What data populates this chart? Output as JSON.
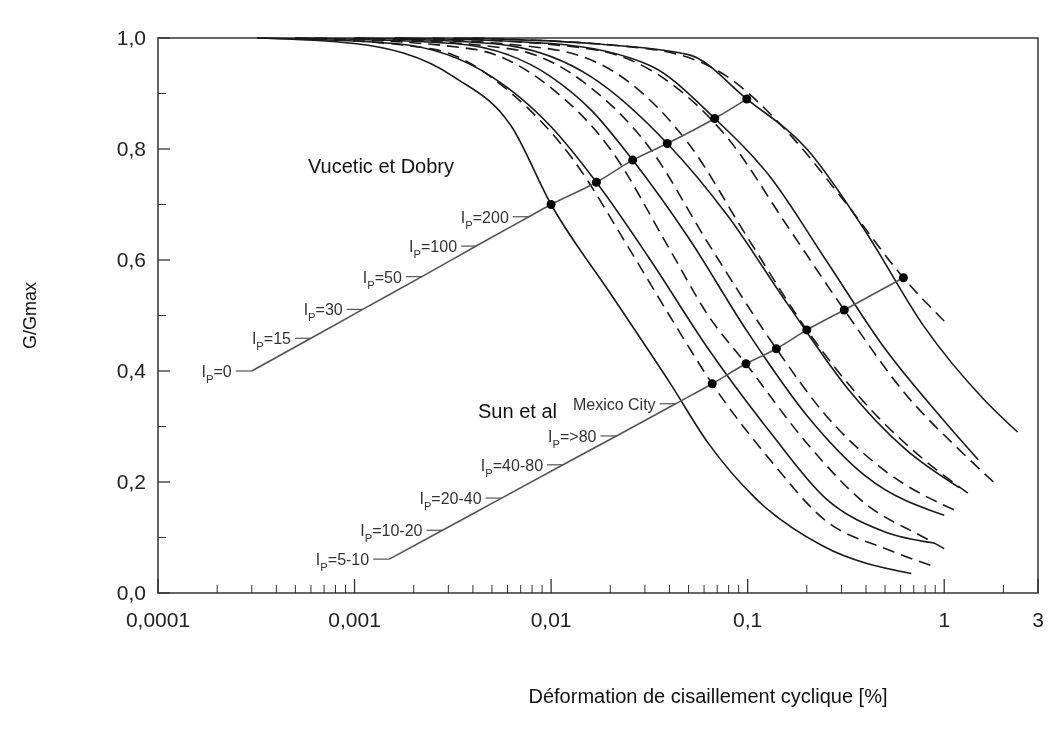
{
  "chart_data": {
    "type": "line",
    "xlabel": "Déformation de cisaillement cyclique [%]",
    "ylabel": "G/Gmax",
    "log": "x",
    "grid": false,
    "xlim": [
      0.0001,
      3
    ],
    "ylim": [
      0,
      1
    ],
    "xticks": [
      {
        "value": 0.0001,
        "label": "0,0001"
      },
      {
        "value": 0.001,
        "label": "0,001"
      },
      {
        "value": 0.01,
        "label": "0,01"
      },
      {
        "value": 0.1,
        "label": "0,1"
      },
      1,
      3
    ],
    "yticks": [
      {
        "value": 0,
        "label": "0,0"
      },
      {
        "value": 0.2,
        "label": "0,2"
      },
      {
        "value": 0.4,
        "label": "0,4"
      },
      {
        "value": 0.6,
        "label": "0,6"
      },
      {
        "value": 0.8,
        "label": "0,8"
      },
      {
        "value": 1,
        "label": "1,0"
      }
    ],
    "series": [
      {
        "color": "#1a1a1a",
        "line_style": "solid",
        "x": [
          0.00032,
          0.001,
          0.0032,
          0.0063,
          0.01,
          0.02,
          0.04,
          0.063,
          0.11,
          0.24,
          0.68
        ],
        "values": [
          1.0,
          0.99,
          0.93,
          0.84,
          0.7,
          0.54,
          0.38,
          0.27,
          0.17,
          0.085,
          0.035
        ]
      },
      {
        "color": "#1a1a1a",
        "line_style": "solid",
        "x": [
          0.00032,
          0.0016,
          0.005,
          0.01,
          0.017,
          0.032,
          0.063,
          0.13,
          0.25,
          0.5,
          0.89
        ],
        "values": [
          1.0,
          0.99,
          0.93,
          0.84,
          0.74,
          0.6,
          0.44,
          0.29,
          0.17,
          0.11,
          0.09
        ]
      },
      {
        "color": "#1a1a1a",
        "line_style": "solid",
        "x": [
          0.0005,
          0.0032,
          0.01,
          0.016,
          0.026,
          0.05,
          0.1,
          0.2,
          0.4,
          1
        ],
        "values": [
          1.0,
          0.99,
          0.93,
          0.87,
          0.78,
          0.64,
          0.47,
          0.32,
          0.21,
          0.14
        ]
      },
      {
        "color": "#1a1a1a",
        "line_style": "solid",
        "x": [
          0.001,
          0.005,
          0.016,
          0.039,
          0.079,
          0.16,
          0.32,
          0.63,
          1.19
        ],
        "values": [
          1.0,
          0.99,
          0.93,
          0.81,
          0.68,
          0.52,
          0.37,
          0.26,
          0.19
        ]
      },
      {
        "color": "#1a1a1a",
        "line_style": "solid",
        "x": [
          0.0016,
          0.01,
          0.032,
          0.068,
          0.13,
          0.25,
          0.5,
          1,
          1.49
        ],
        "values": [
          1.0,
          0.99,
          0.95,
          0.855,
          0.75,
          0.6,
          0.44,
          0.31,
          0.24
        ]
      },
      {
        "color": "#1a1a1a",
        "line_style": "solid",
        "x": [
          0.0032,
          0.016,
          0.05,
          0.099,
          0.2,
          0.4,
          0.79,
          1.58,
          2.36
        ],
        "values": [
          1.0,
          0.99,
          0.97,
          0.89,
          0.8,
          0.65,
          0.48,
          0.35,
          0.29
        ]
      },
      {
        "color": "#1a1a1a",
        "line_style": "dashed",
        "x": [
          0.0005,
          0.0025,
          0.0063,
          0.013,
          0.025,
          0.04,
          0.066,
          0.13,
          0.25,
          0.5,
          0.85
        ],
        "values": [
          1.0,
          0.98,
          0.9,
          0.78,
          0.62,
          0.5,
          0.377,
          0.24,
          0.13,
          0.08,
          0.05
        ]
      },
      {
        "color": "#1a1a1a",
        "line_style": "dashed",
        "x": [
          0.00063,
          0.004,
          0.01,
          0.02,
          0.04,
          0.063,
          0.098,
          0.2,
          0.4,
          0.79,
          1
        ],
        "values": [
          1.0,
          0.98,
          0.91,
          0.8,
          0.62,
          0.5,
          0.413,
          0.27,
          0.16,
          0.1,
          0.08
        ]
      },
      {
        "color": "#1a1a1a",
        "line_style": "dashed",
        "x": [
          0.001,
          0.0063,
          0.016,
          0.032,
          0.063,
          0.14,
          0.25,
          0.5,
          1.12
        ],
        "values": [
          1.0,
          0.98,
          0.91,
          0.8,
          0.63,
          0.44,
          0.32,
          0.22,
          0.15
        ]
      },
      {
        "color": "#1a1a1a",
        "line_style": "dashed",
        "x": [
          0.0016,
          0.01,
          0.025,
          0.05,
          0.1,
          0.2,
          0.4,
          0.79,
          1.32
        ],
        "values": [
          1.0,
          0.98,
          0.92,
          0.81,
          0.64,
          0.474,
          0.34,
          0.24,
          0.18
        ]
      },
      {
        "color": "#1a1a1a",
        "line_style": "dashed",
        "x": [
          0.0025,
          0.016,
          0.04,
          0.079,
          0.16,
          0.31,
          0.63,
          1.26,
          1.78
        ],
        "values": [
          1.0,
          0.98,
          0.92,
          0.82,
          0.66,
          0.51,
          0.36,
          0.25,
          0.2
        ]
      },
      {
        "color": "#1a1a1a",
        "line_style": "dashed",
        "x": [
          0.004,
          0.032,
          0.079,
          0.16,
          0.32,
          0.62,
          1
        ],
        "values": [
          1.0,
          0.98,
          0.93,
          0.83,
          0.7,
          0.568,
          0.49
        ]
      },
      {
        "color": "#555555",
        "line_style": "solid",
        "x": [
          0.0003,
          0.0006,
          0.0011,
          0.0022,
          0.0042,
          0.0077,
          0.01,
          0.017,
          0.026,
          0.039,
          0.068,
          0.099
        ],
        "values": [
          0.4,
          0.459,
          0.511,
          0.57,
          0.626,
          0.678,
          0.7,
          0.74,
          0.78,
          0.81,
          0.855,
          0.89
        ]
      },
      {
        "color": "#555555",
        "line_style": "solid",
        "x": [
          0.0015,
          0.0028,
          0.0056,
          0.0115,
          0.0215,
          0.043,
          0.066,
          0.098,
          0.14,
          0.2,
          0.31,
          0.62
        ],
        "values": [
          0.061,
          0.113,
          0.171,
          0.231,
          0.283,
          0.341,
          0.377,
          0.413,
          0.44,
          0.474,
          0.51,
          0.568
        ]
      },
      {
        "type": "scatter",
        "marker": "circle",
        "color": "#000000",
        "x": [
          0.01,
          0.017,
          0.026,
          0.039,
          0.068,
          0.099
        ],
        "values": [
          0.7,
          0.74,
          0.78,
          0.81,
          0.855,
          0.89
        ]
      },
      {
        "type": "scatter",
        "marker": "circle",
        "color": "#000000",
        "x": [
          0.066,
          0.098,
          0.14,
          0.2,
          0.31,
          0.62
        ],
        "values": [
          0.377,
          0.413,
          0.44,
          0.474,
          0.51,
          0.568
        ]
      }
    ],
    "annotations": [
      "Vucetic et Dobry",
      "Sun et al",
      {
        "text": "I$_{P}$=0",
        "x": 0.0003,
        "y": 0.4
      },
      {
        "text": "I$_{P}$=15",
        "x": 0.0006,
        "y": 0.459
      },
      {
        "text": "I$_{P}$=30",
        "x": 0.0011,
        "y": 0.511
      },
      {
        "text": "I$_{P}$=50",
        "x": 0.0022,
        "y": 0.57
      },
      {
        "text": "I$_{P}$=100",
        "x": 0.0042,
        "y": 0.625
      },
      {
        "text": "I$_{P}$=200",
        "x": 0.0077,
        "y": 0.678
      },
      {
        "text": "I$_{P}$=5-10",
        "x": 0.0015,
        "y": 0.061
      },
      {
        "text": "I$_{P}$=10-20",
        "x": 0.0028,
        "y": 0.113
      },
      {
        "text": "I$_{P}$=20-40",
        "x": 0.0056,
        "y": 0.171
      },
      {
        "text": "I$_{P}$=40-80",
        "x": 0.0115,
        "y": 0.231
      },
      {
        "text": "I$_{P}$=>80",
        "x": 0.0215,
        "y": 0.283
      },
      {
        "text": "Mexico City",
        "x": 0.043,
        "y": 0.341
      }
    ]
  }
}
